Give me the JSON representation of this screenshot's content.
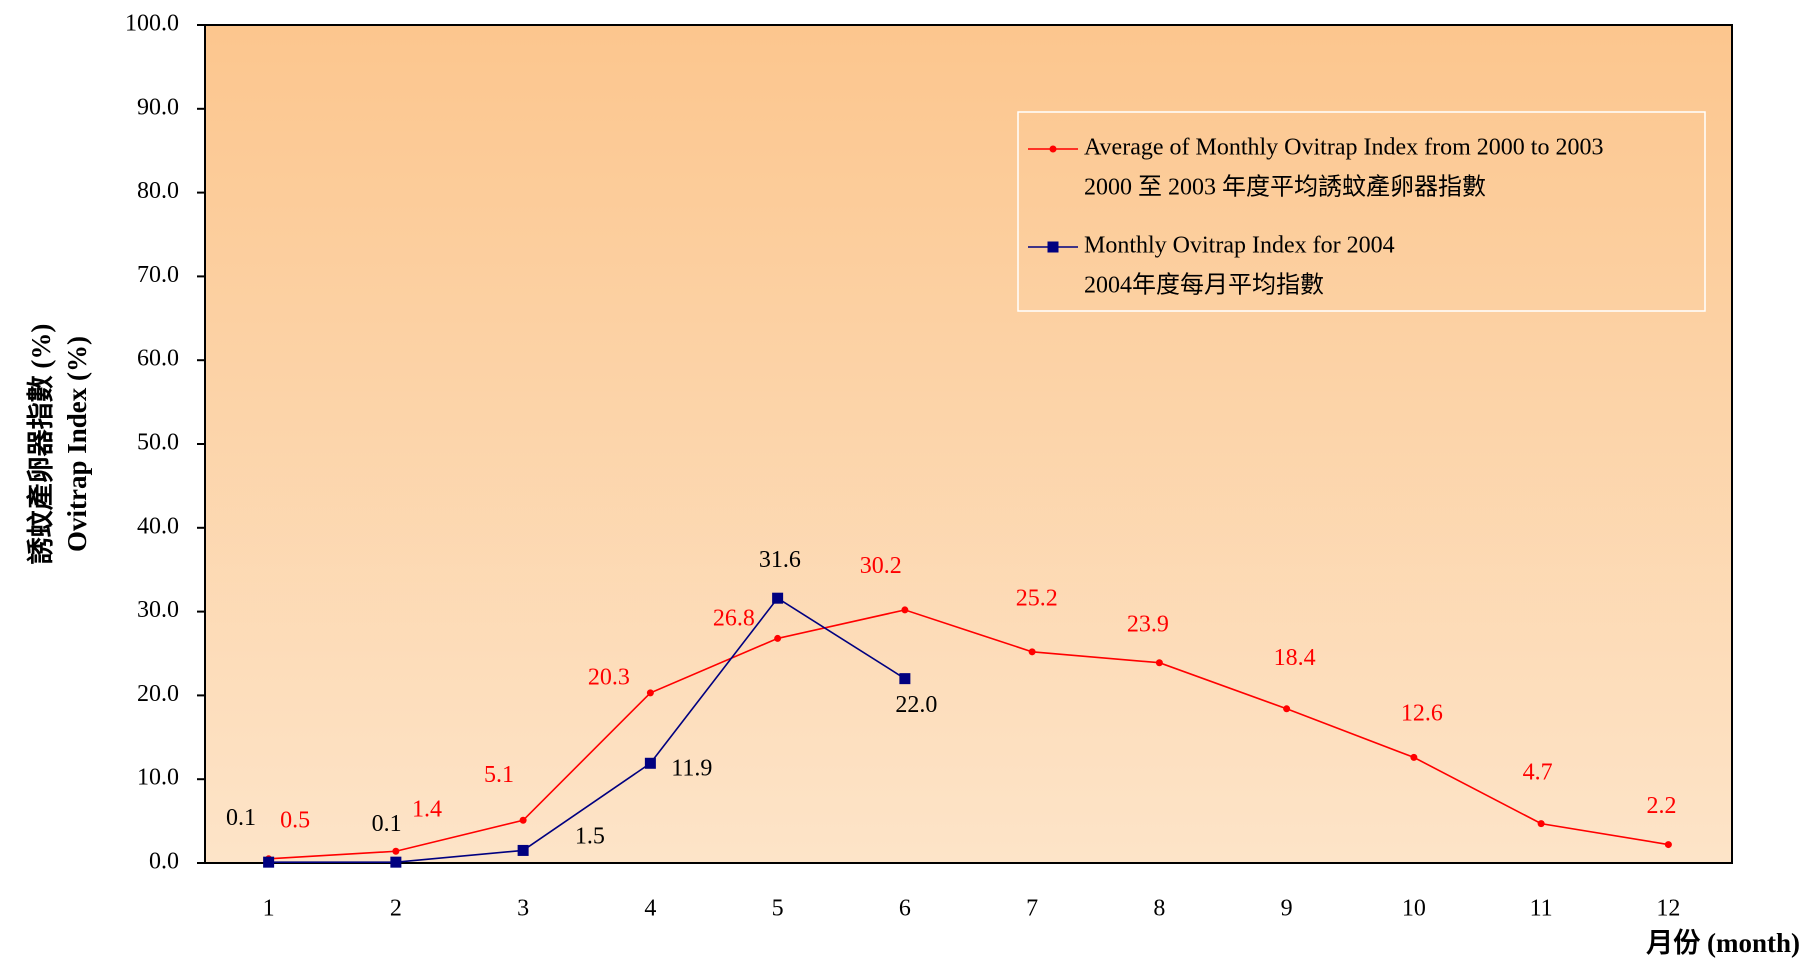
{
  "chart_data": {
    "type": "line",
    "y_label": "Ovitrap Index (%)",
    "y_label_zh": "誘蚊產卵器指數 (%)",
    "x_label": "月份 (month)",
    "categories": [
      "1",
      "2",
      "3",
      "4",
      "5",
      "6",
      "7",
      "8",
      "9",
      "10",
      "11",
      "12"
    ],
    "series": [
      {
        "name": "Average of Monthly Ovitrap Index from 2000 to 2003",
        "name_zh": "2000 至 2003 年度平均誘蚊產卵器指數",
        "color": "#ff0000",
        "marker": "circle",
        "label_color": "#ff0000",
        "values": [
          0.5,
          1.4,
          5.1,
          20.3,
          26.8,
          30.2,
          25.2,
          23.9,
          18.4,
          12.6,
          4.7,
          2.2
        ]
      },
      {
        "name": "Monthly Ovitrap Index for 2004",
        "name_zh": "2004年度每月平均指數",
        "color": "#000080",
        "marker": "square",
        "label_color": "#000000",
        "values": [
          0.1,
          0.1,
          1.5,
          11.9,
          31.6,
          22,
          null,
          null,
          null,
          null,
          null,
          null
        ],
        "value_labels": [
          "0.1",
          "0.1",
          "1.5",
          "11.9",
          "31.6",
          "22.0",
          null,
          null,
          null,
          null,
          null,
          null
        ]
      }
    ],
    "ylim": [
      0,
      100
    ],
    "yticks": [
      {
        "value": 0,
        "label": "0.0"
      },
      {
        "value": 10,
        "label": "10.0"
      },
      {
        "value": 20,
        "label": "20.0"
      },
      {
        "value": 30,
        "label": "30.0"
      },
      {
        "value": 40,
        "label": "40.0"
      },
      {
        "value": 50,
        "label": "50.0"
      },
      {
        "value": 60,
        "label": "60.0"
      },
      {
        "value": 70,
        "label": "70.0"
      },
      {
        "value": 80,
        "label": "80.0"
      },
      {
        "value": 90,
        "label": "90.0"
      },
      {
        "value": 100,
        "label": "100.0"
      }
    ],
    "grid": false,
    "legend": "upper right"
  }
}
